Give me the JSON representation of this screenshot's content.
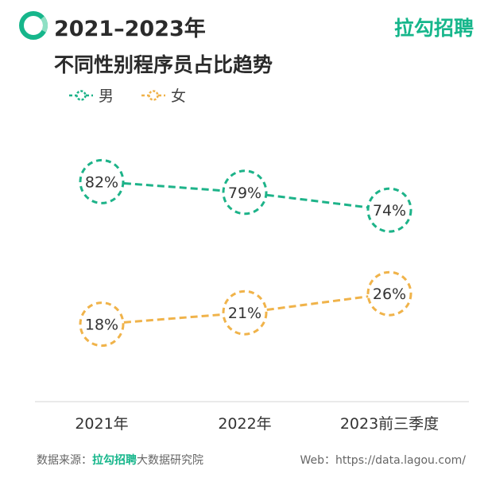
{
  "header": {
    "title_line1": "2021–2023年",
    "title_line2": "不同性别程序员占比趋势",
    "brand": "拉勾招聘"
  },
  "footer": {
    "source_prefix": "数据来源：",
    "source_brand": "拉勾招聘",
    "source_suffix": "大数据研究院",
    "web": "Web：https://data.lagou.com/"
  },
  "colors": {
    "male": "#1db389",
    "female": "#f0b34a",
    "brand": "#16b68b"
  },
  "chart_data": {
    "type": "line",
    "categories": [
      "2021年",
      "2022年",
      "2023前三季度"
    ],
    "series": [
      {
        "name": "男",
        "values": [
          82,
          79,
          74
        ],
        "labels": [
          "82%",
          "79%",
          "74%"
        ]
      },
      {
        "name": "女",
        "values": [
          18,
          21,
          26
        ],
        "labels": [
          "18%",
          "21%",
          "26%"
        ]
      }
    ],
    "unit": "%",
    "grid": false,
    "legend": "top-left"
  }
}
